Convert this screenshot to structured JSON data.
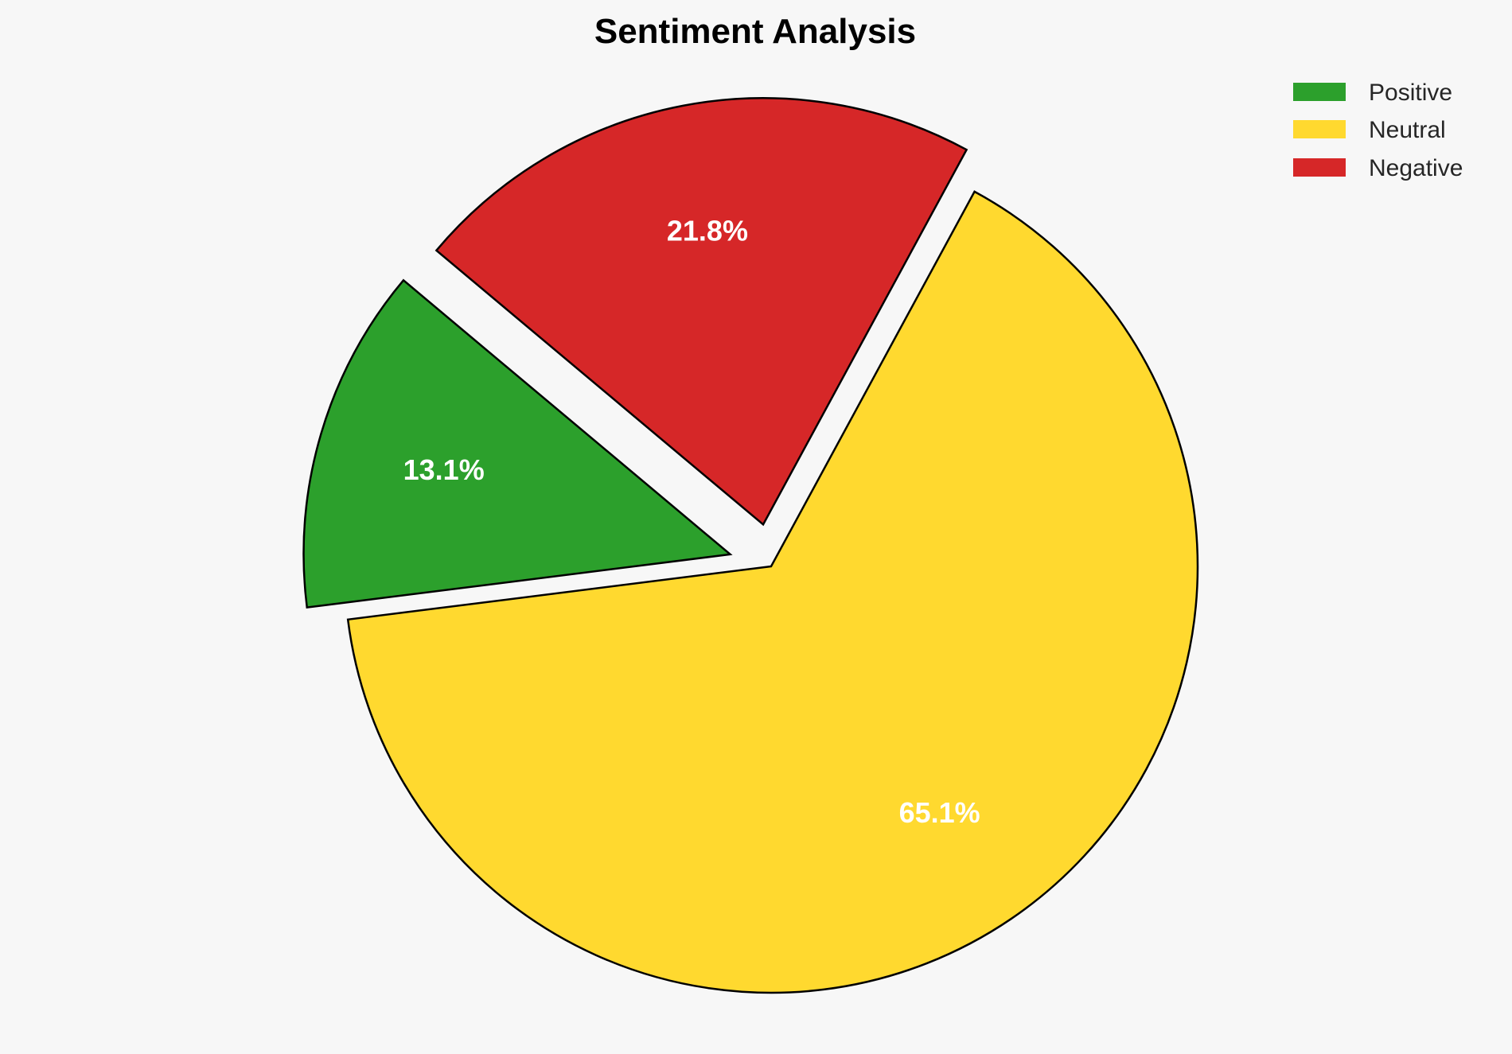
{
  "chart_data": {
    "type": "pie",
    "title": "Sentiment Analysis",
    "categories": [
      "Positive",
      "Neutral",
      "Negative"
    ],
    "values": [
      13.1,
      65.1,
      21.8
    ],
    "labels": [
      "13.1%",
      "65.1%",
      "21.8%"
    ],
    "colors": [
      "#2ca02c",
      "#ffd92f",
      "#d62728"
    ],
    "explode": [
      0.1,
      0,
      0.1
    ],
    "start_angle": 140,
    "edge_color": "#000000",
    "legend_position": "top-right"
  }
}
